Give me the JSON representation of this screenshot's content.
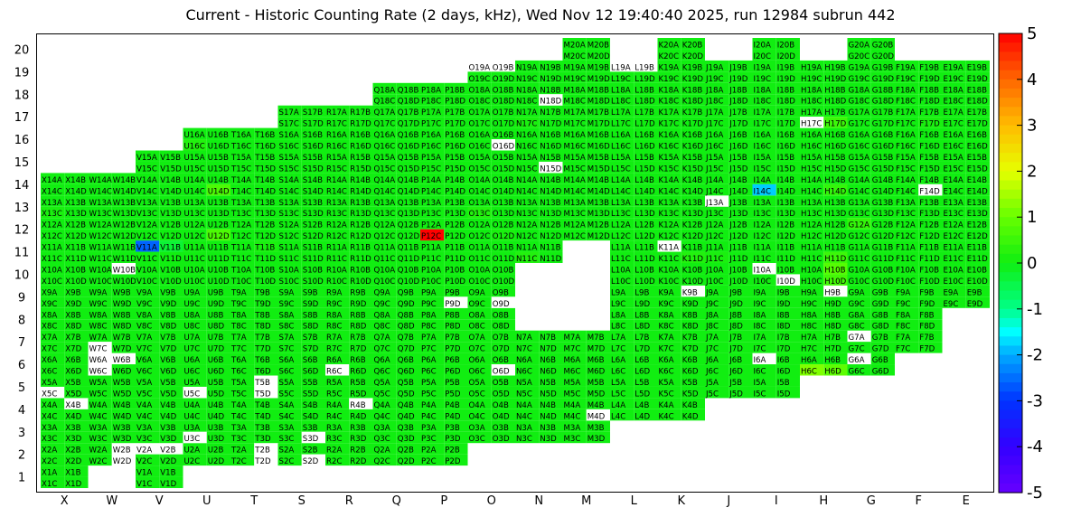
{
  "title": "Current - Historic Counting Rate (2 days, kHz), Wed Nov 12 19:40:40 2025, run 12984 subrun 442",
  "chart_data": {
    "type": "heatmap",
    "columns": [
      "X",
      "W",
      "V",
      "U",
      "T",
      "S",
      "R",
      "Q",
      "P",
      "O",
      "N",
      "M",
      "L",
      "K",
      "J",
      "I",
      "H",
      "G",
      "F",
      "E"
    ],
    "rows": [
      1,
      2,
      3,
      4,
      5,
      6,
      7,
      8,
      9,
      10,
      11,
      12,
      13,
      14,
      15,
      16,
      17,
      18,
      19,
      20
    ],
    "colorbar": {
      "min": -5,
      "max": 5,
      "ticks": [
        "5",
        "4",
        "3",
        "2",
        "1",
        "0",
        "-1",
        "-2",
        "-3",
        "-4",
        "-5"
      ]
    },
    "default_value": 0,
    "layout_rows": [
      [
        1,
        [
          "X",
          "V"
        ]
      ],
      [
        2,
        [
          "X",
          "W",
          "V",
          "U",
          "T",
          "S",
          "R",
          "Q",
          "P"
        ]
      ],
      [
        3,
        [
          "X",
          "W",
          "V",
          "U",
          "T",
          "S",
          "R",
          "Q",
          "P",
          "O",
          "N",
          "M"
        ]
      ],
      [
        4,
        [
          "X",
          "W",
          "V",
          "U",
          "T",
          "S",
          "R",
          "Q",
          "P",
          "O",
          "N",
          "M",
          "L",
          "K"
        ]
      ],
      [
        5,
        [
          "X",
          "W",
          "V",
          "U",
          "T",
          "S",
          "R",
          "Q",
          "P",
          "O",
          "N",
          "M",
          "L",
          "K",
          "J",
          "I"
        ]
      ],
      [
        6,
        [
          "X",
          "W",
          "V",
          "U",
          "T",
          "S",
          "R",
          "Q",
          "P",
          "O",
          "N",
          "M",
          "L",
          "K",
          "J",
          "I",
          "H",
          "G"
        ]
      ],
      [
        7,
        [
          "X",
          "W",
          "V",
          "U",
          "T",
          "S",
          "R",
          "Q",
          "P",
          "O",
          "N",
          "M",
          "L",
          "K",
          "J",
          "I",
          "H",
          "G",
          "F"
        ]
      ],
      [
        8,
        [
          "X",
          "W",
          "V",
          "U",
          "T",
          "S",
          "R",
          "Q",
          "P",
          "O",
          "L",
          "K",
          "J",
          "I",
          "H",
          "G",
          "F"
        ]
      ],
      [
        9,
        [
          "X",
          "W",
          "V",
          "U",
          "T",
          "S",
          "R",
          "Q",
          "P",
          "O",
          "L",
          "K",
          "J",
          "I",
          "H",
          "G",
          "F",
          "E"
        ]
      ],
      [
        10,
        [
          "X",
          "W",
          "V",
          "U",
          "T",
          "S",
          "R",
          "Q",
          "P",
          "O",
          "L",
          "K",
          "J",
          "I",
          "H",
          "G",
          "F",
          "E"
        ]
      ],
      [
        11,
        [
          "X",
          "W",
          "V",
          "U",
          "T",
          "S",
          "R",
          "Q",
          "P",
          "O",
          "N",
          "L",
          "K",
          "J",
          "I",
          "H",
          "G",
          "F",
          "E"
        ]
      ],
      [
        12,
        [
          "X",
          "W",
          "V",
          "U",
          "T",
          "S",
          "R",
          "Q",
          "P",
          "O",
          "N",
          "M",
          "L",
          "K",
          "J",
          "I",
          "H",
          "G",
          "F",
          "E"
        ]
      ],
      [
        13,
        [
          "X",
          "W",
          "V",
          "U",
          "T",
          "S",
          "R",
          "Q",
          "P",
          "O",
          "N",
          "M",
          "L",
          "K",
          "J",
          "I",
          "H",
          "G",
          "F",
          "E"
        ]
      ],
      [
        14,
        [
          "X",
          "W",
          "V",
          "U",
          "T",
          "S",
          "R",
          "Q",
          "P",
          "O",
          "N",
          "M",
          "L",
          "K",
          "J",
          "I",
          "H",
          "G",
          "F",
          "E"
        ]
      ],
      [
        15,
        [
          "V",
          "U",
          "T",
          "S",
          "R",
          "Q",
          "P",
          "O",
          "N",
          "M",
          "L",
          "K",
          "J",
          "I",
          "H",
          "G",
          "F",
          "E"
        ]
      ],
      [
        16,
        [
          "U",
          "T",
          "S",
          "R",
          "Q",
          "P",
          "O",
          "N",
          "M",
          "L",
          "K",
          "J",
          "I",
          "H",
          "G",
          "F",
          "E"
        ]
      ],
      [
        17,
        [
          "S",
          "R",
          "Q",
          "P",
          "O",
          "N",
          "M",
          "L",
          "K",
          "J",
          "I",
          "H",
          "G",
          "F",
          "E"
        ]
      ],
      [
        18,
        [
          "Q",
          "P",
          "O",
          "N",
          "M",
          "L",
          "K",
          "J",
          "I",
          "H",
          "G",
          "F",
          "E"
        ]
      ],
      [
        19,
        [
          "O",
          "N",
          "M",
          "L",
          "K",
          "J",
          "I",
          "H",
          "G",
          "F",
          "E"
        ]
      ],
      [
        20,
        [
          "M",
          "K",
          "I",
          "G"
        ]
      ]
    ],
    "cell_values": {
      "X4B": null,
      "W2B": null,
      "W2D": null,
      "V2A": null,
      "V2B": null,
      "U3C": null,
      "U5C": null,
      "T2B": null,
      "T2D": null,
      "T5B": null,
      "T5D": null,
      "S2D": null,
      "S3D": null,
      "R4B": null,
      "R6C": null,
      "P9D": null,
      "O9D": null,
      "O6D": null,
      "M4D": null,
      "K11A": null,
      "K9B": null,
      "J13A": null,
      "I6A": null,
      "I10A": null,
      "H9B": null,
      "H17C": null,
      "G7A": null,
      "G6A": null,
      "F14D": null,
      "O19A": null,
      "O19B": null,
      "L19A": null,
      "L19B": null,
      "N18D": null,
      "N15D": null,
      "O16D": null,
      "I10D": null,
      "W7C": null,
      "W6A": null,
      "W6B": null,
      "W6C": null,
      "X5C": null,
      "W10B": null,
      "V11A": -2.6,
      "V11B": -0.3,
      "P12C": 5,
      "U14D": 0.7,
      "U12D": 0.7,
      "I14C": -1.8,
      "H10B": 0.8,
      "H10D": 0.6,
      "H6C": 1.2,
      "H6D": 0.9,
      "H11D": 0.5,
      "H14D": 0.4,
      "H17D": 0.5,
      "G12A": 0.4,
      "O13C": 0.2,
      "O12D": 0.1,
      "N11C": 0.2,
      "F17D": 0.1,
      "J11C": 0.1,
      "K11D": 0.2,
      "N17C": 0.1,
      "X13C": 0.1,
      "U16C": 0.2,
      "T11B": 0.1
    }
  }
}
